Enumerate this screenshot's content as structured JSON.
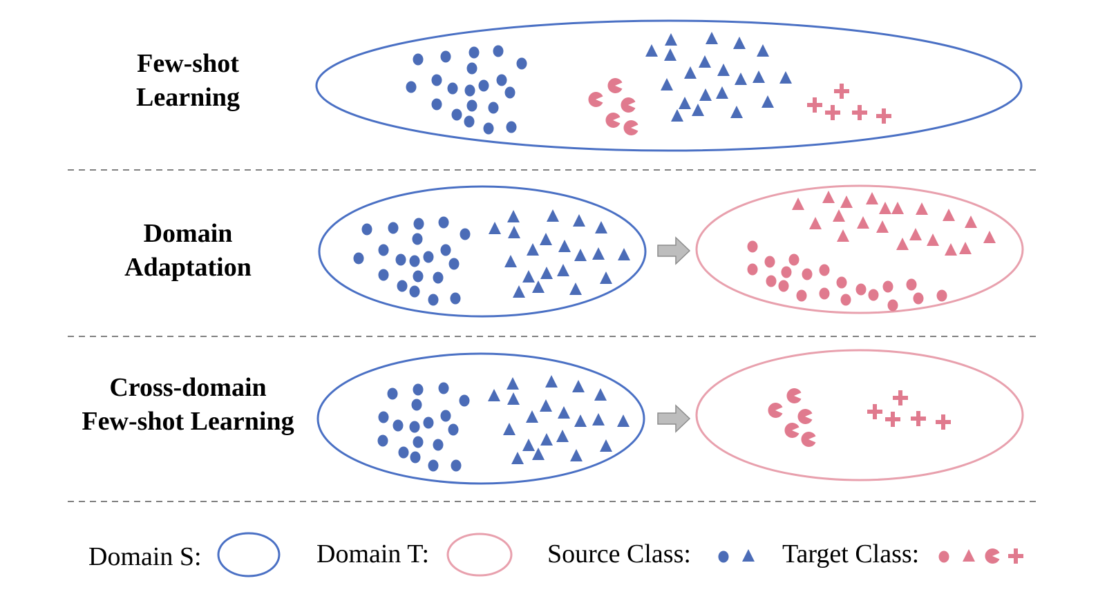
{
  "rows": [
    {
      "label_line1": "Few-shot",
      "label_line2": "Learning"
    },
    {
      "label_line1": "Domain",
      "label_line2": "Adaptation"
    },
    {
      "label_line1": "Cross-domain",
      "label_line2": "Few-shot Learning"
    }
  ],
  "legend": {
    "domain_s": "Domain S:",
    "domain_t": "Domain T:",
    "source_class": "Source Class:",
    "target_class": "Target Class:"
  },
  "colors": {
    "source_blue": "#4b6cb7",
    "target_pink": "#e07a8e",
    "ellipse_blue": "#4a70c4",
    "ellipse_pink": "#e8a0ad",
    "arrow_fill": "#bdbdbd",
    "arrow_stroke": "#8c8c8c",
    "divider": "#808080"
  },
  "icons": {
    "source_classes": [
      "circle-icon",
      "triangle-icon"
    ],
    "target_classes": [
      "circle-icon",
      "triangle-icon",
      "pacman-icon",
      "plus-icon"
    ],
    "transfer": "arrow-right-icon"
  }
}
